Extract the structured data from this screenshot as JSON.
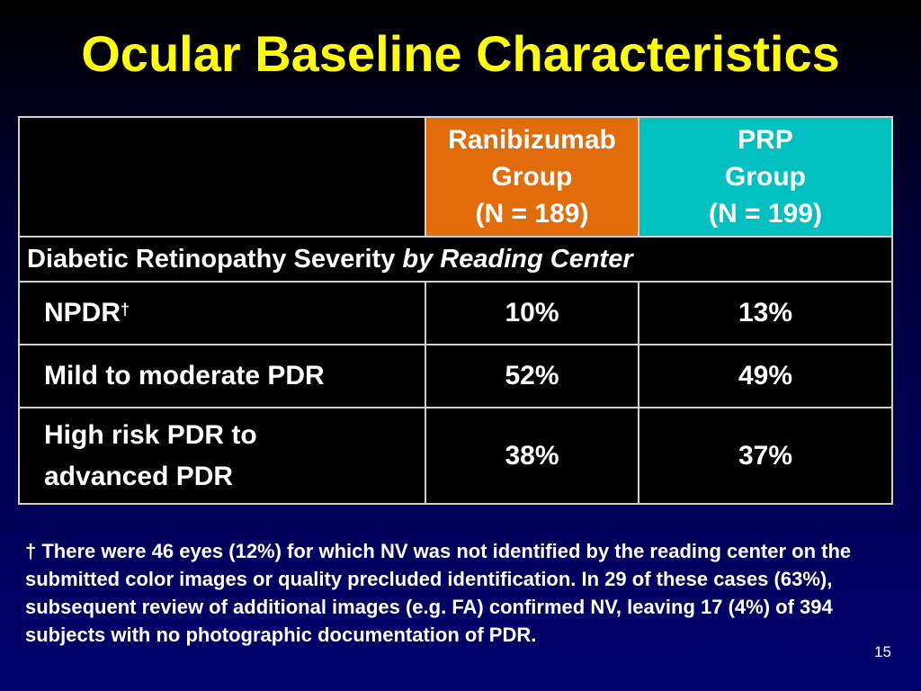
{
  "slide": {
    "title": "Ocular Baseline Characteristics",
    "page_number": "15"
  },
  "colors": {
    "title": "#ffff00",
    "ranibizumab_header": "#e36c0a",
    "prp_header": "#00c0c0",
    "table_background": "#000000",
    "slide_background": "#00006e"
  },
  "table": {
    "headers": {
      "ranibizumab": [
        "Ranibizumab",
        "Group",
        "(N = 189)"
      ],
      "prp": [
        "PRP",
        "Group",
        "(N = 199)"
      ]
    },
    "section": {
      "label": "Diabetic Retinopathy Severity ",
      "label_italic": "by Reading Center"
    },
    "rows": [
      {
        "label": [
          "NPDR"
        ],
        "marker": "†",
        "ranibizumab": "10%",
        "prp": "13%"
      },
      {
        "label": [
          "Mild to moderate PDR"
        ],
        "marker": "",
        "ranibizumab": "52%",
        "prp": "49%"
      },
      {
        "label": [
          "High risk PDR to",
          "advanced PDR"
        ],
        "marker": "",
        "ranibizumab": "38%",
        "prp": "37%"
      }
    ]
  },
  "footnote": "† There were 46 eyes (12%) for which NV was not identified by the reading center on the submitted color images or quality precluded identification.  In 29 of these cases (63%), subsequent review of additional images (e.g. FA) confirmed NV, leaving 17 (4%) of 394 subjects with no photographic documentation of PDR."
}
